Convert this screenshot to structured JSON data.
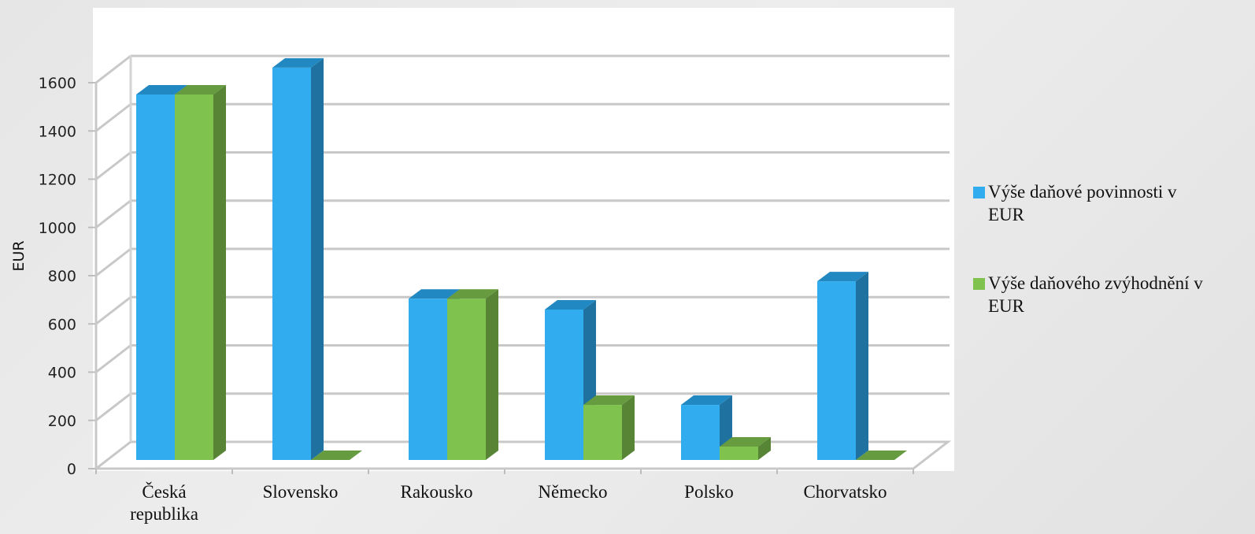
{
  "chart_data": {
    "type": "bar",
    "ylabel": "EUR",
    "ylim": [
      0,
      1600
    ],
    "yticks": [
      0,
      200,
      400,
      600,
      800,
      1000,
      1200,
      1400,
      1600
    ],
    "categories": [
      [
        "Česká",
        "republika"
      ],
      [
        "Slovensko"
      ],
      [
        "Rakousko"
      ],
      [
        "Německo"
      ],
      [
        "Polsko"
      ],
      [
        "Chorvatsko"
      ]
    ],
    "series": [
      {
        "name": [
          "Výše daňové povinnosti v",
          "EUR"
        ],
        "values": [
          1360,
          1460,
          600,
          560,
          205,
          665
        ],
        "color": "#31acee",
        "side_color": "#1f729f",
        "top_color": "#2288c2"
      },
      {
        "name": [
          "Výše daňového zvýhodnění v",
          "EUR"
        ],
        "values": [
          1360,
          0,
          600,
          205,
          50,
          0
        ],
        "color": "#7fc24e",
        "side_color": "#578435",
        "top_color": "#669b3f"
      }
    ],
    "grid": true,
    "legend_position": "right"
  }
}
